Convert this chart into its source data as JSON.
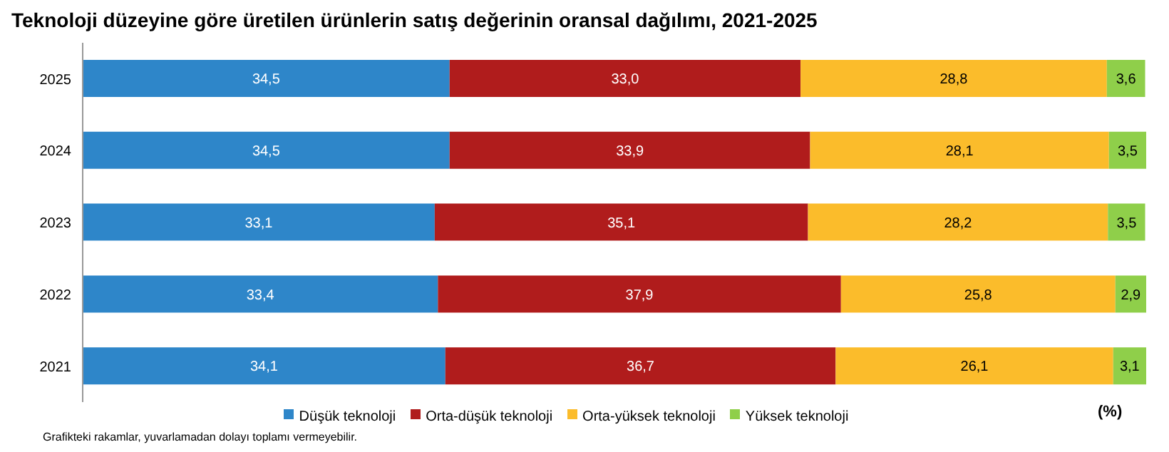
{
  "chart_data": {
    "type": "bar",
    "orientation": "horizontal",
    "stacked": true,
    "title": "Teknoloji düzeyine göre üretilen ürünlerin satış değerinin oransal dağılımı, 2021-2025",
    "categories": [
      "2025",
      "2024",
      "2023",
      "2022",
      "2021"
    ],
    "series": [
      {
        "name": "Düşük teknoloji",
        "color": "#2e86c9",
        "values": [
          34.5,
          34.5,
          33.1,
          33.4,
          34.1
        ],
        "value_labels": [
          "34,5",
          "34,5",
          "33,1",
          "33,4",
          "34,1"
        ]
      },
      {
        "name": "Orta-düşük teknoloji",
        "color": "#b01c1c",
        "values": [
          33.0,
          33.9,
          35.1,
          37.9,
          36.7
        ],
        "value_labels": [
          "33,0",
          "33,9",
          "35,1",
          "37,9",
          "36,7"
        ]
      },
      {
        "name": "Orta-yüksek teknoloji",
        "color": "#fbbc2b",
        "values": [
          28.8,
          28.1,
          28.2,
          25.8,
          26.1
        ],
        "value_labels": [
          "28,8",
          "28,1",
          "28,2",
          "25,8",
          "26,1"
        ]
      },
      {
        "name": "Yüksek teknoloji",
        "color": "#8fcf4a",
        "values": [
          3.6,
          3.5,
          3.5,
          2.9,
          3.1
        ],
        "value_labels": [
          "3,6",
          "3,5",
          "3,5",
          "2,9",
          "3,1"
        ]
      }
    ],
    "xlim": [
      0,
      100
    ],
    "tick_labels": "y",
    "grid": false,
    "legend": "bottom",
    "annotations": [
      "(%)",
      "Grafikteki rakamlar, yuvarlamadan dolayı toplamı vermeyebilir."
    ]
  }
}
